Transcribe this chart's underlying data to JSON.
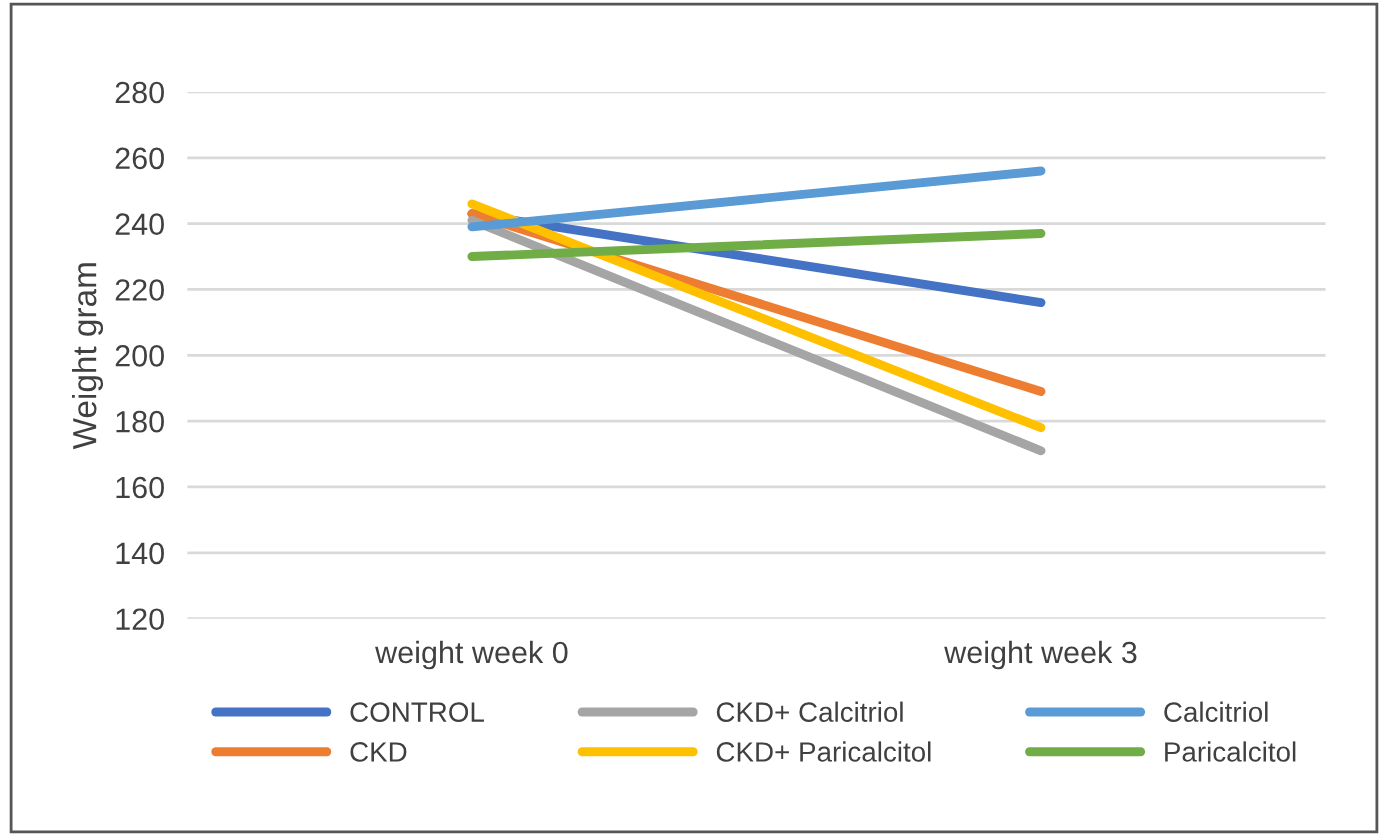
{
  "chart_data": {
    "type": "line",
    "ylabel": "Weight gram",
    "categories": [
      "weight week 0",
      "weight week 3"
    ],
    "series": [
      {
        "name": "CONTROL",
        "color": "#4472c4",
        "values": [
          243,
          216
        ]
      },
      {
        "name": "CKD",
        "color": "#ed7d31",
        "values": [
          243,
          189
        ]
      },
      {
        "name": "CKD+ Calcitriol",
        "color": "#a5a5a5",
        "values": [
          241,
          171
        ]
      },
      {
        "name": "CKD+ Paricalcitol",
        "color": "#ffc000",
        "values": [
          246,
          178
        ]
      },
      {
        "name": "Calcitriol",
        "color": "#5b9bd5",
        "values": [
          239,
          256
        ]
      },
      {
        "name": "Paricalcitol",
        "color": "#70ad47",
        "values": [
          230,
          237
        ]
      }
    ],
    "ylim": [
      120,
      280
    ],
    "yticks": [
      120,
      140,
      160,
      180,
      200,
      220,
      240,
      260,
      280
    ],
    "grid": "y",
    "legend": "bottom",
    "marker": "none",
    "line_style": "solid"
  }
}
